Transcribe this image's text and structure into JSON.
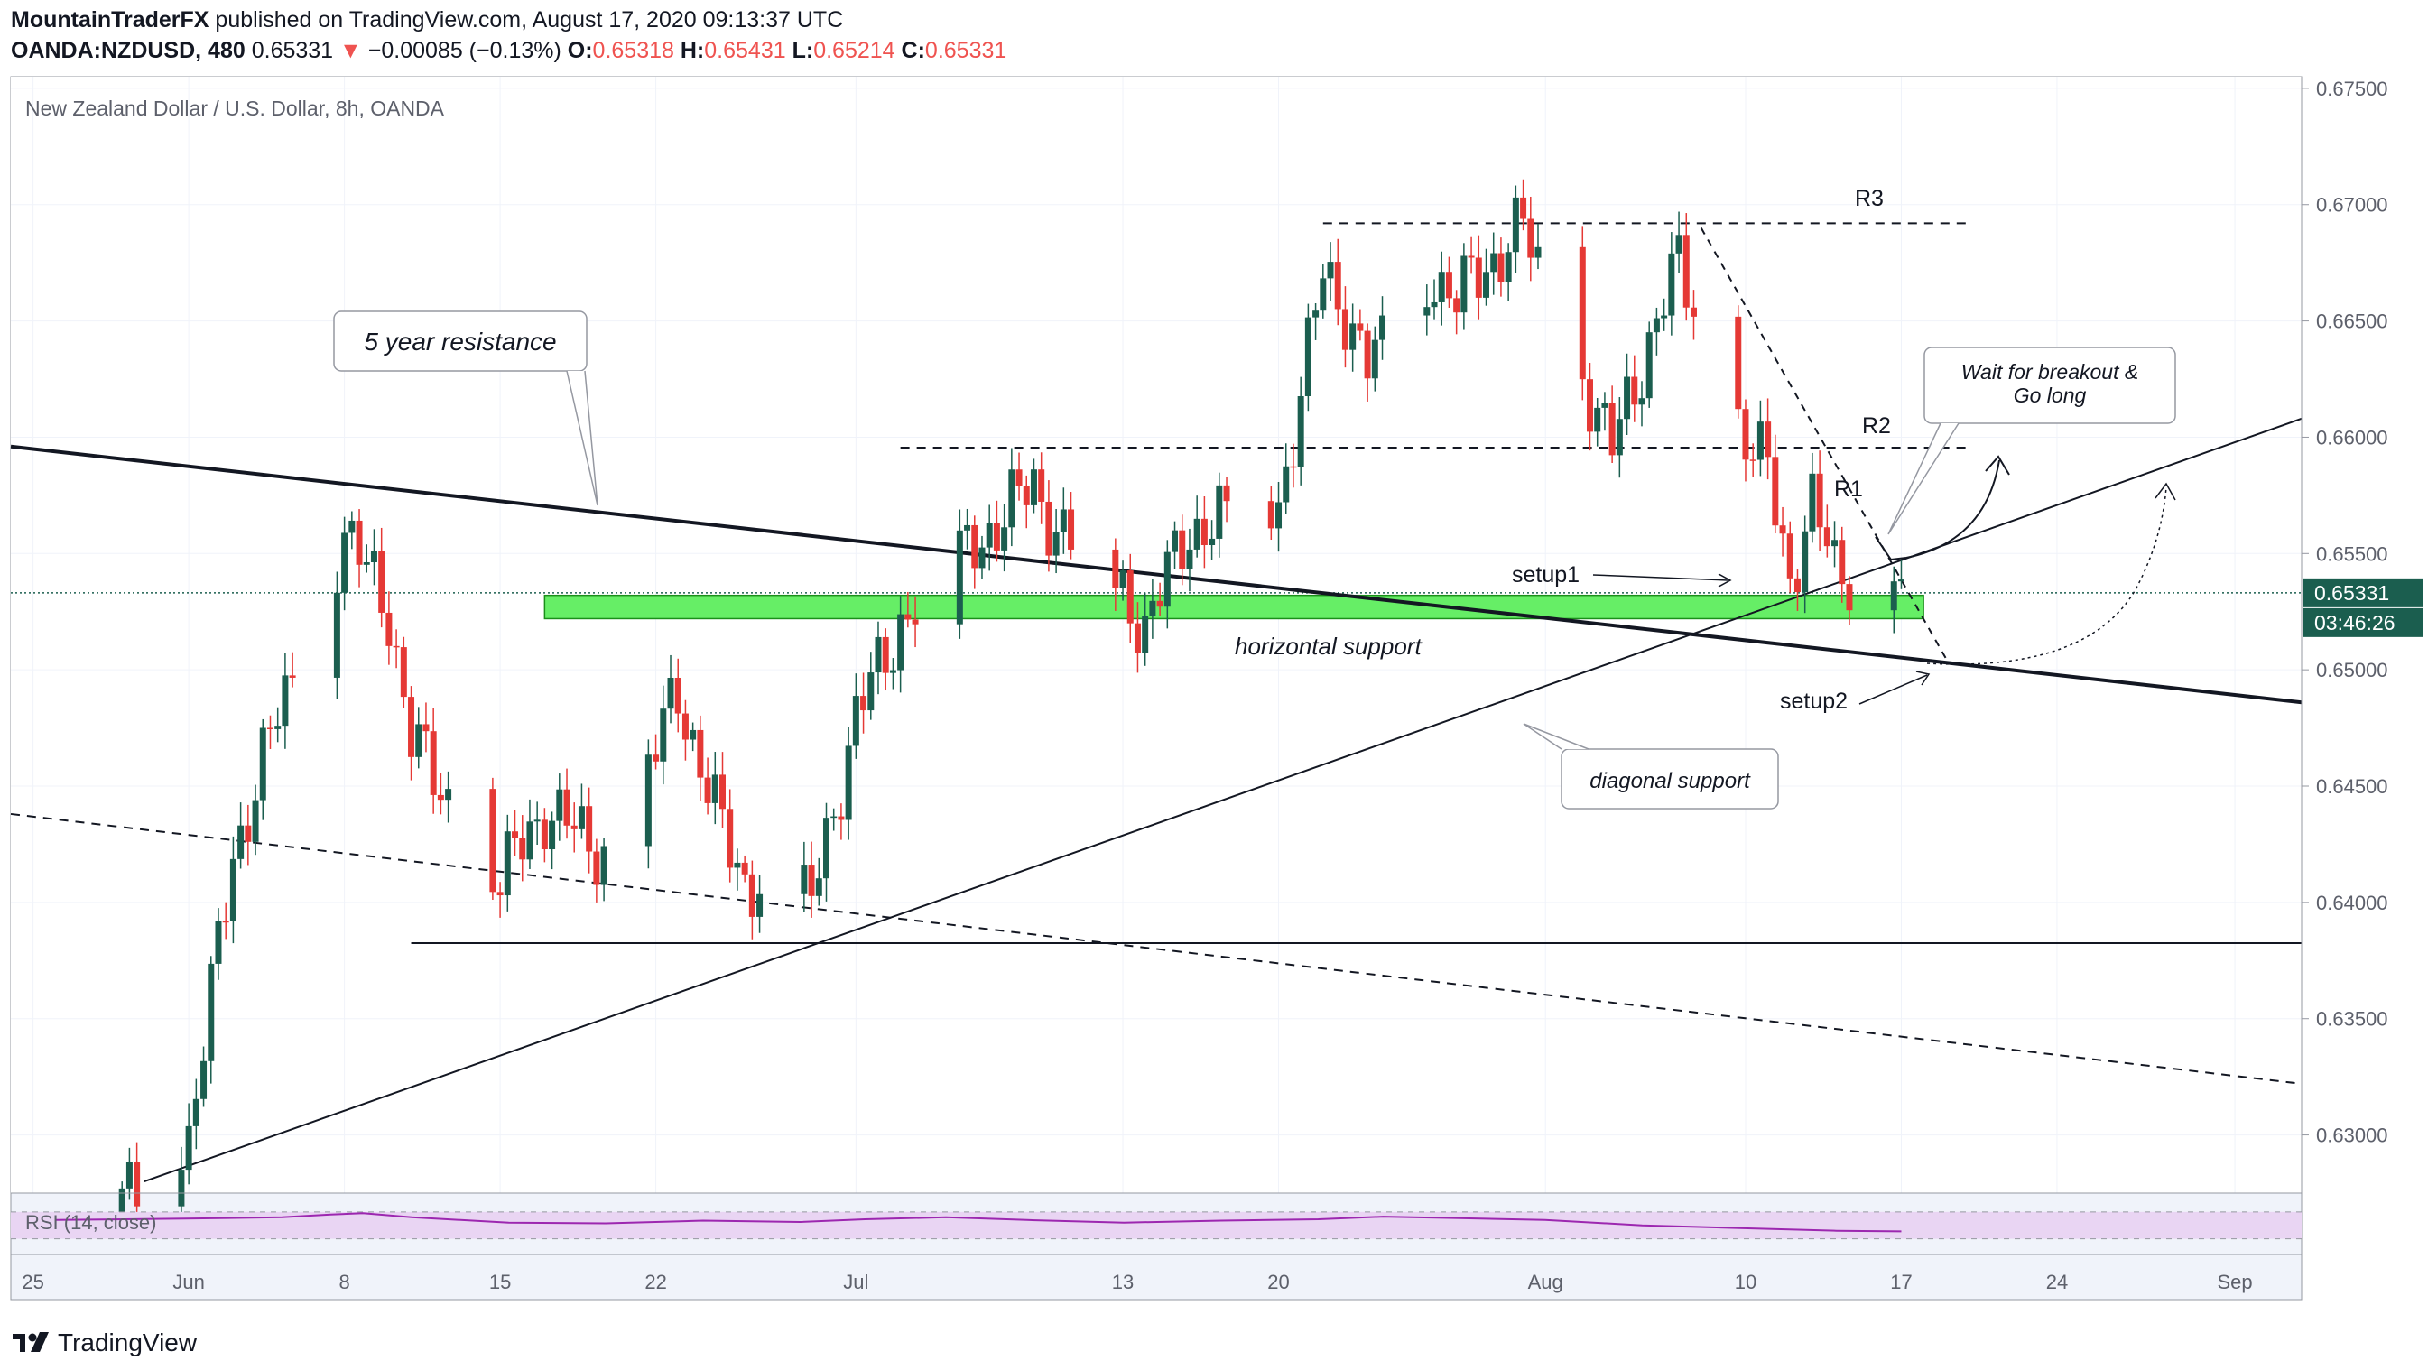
{
  "header": {
    "author": "MountainTraderFX",
    "published": "published on TradingView.com, August 17, 2020 09:13:37 UTC",
    "symbol": "OANDA:NZDUSD, 480",
    "last": "0.65331",
    "change_arrow": "▼",
    "change": "−0.00085 (−0.13%)",
    "o_label": "O:",
    "o_value": "0.65318",
    "h_label": "H:",
    "h_value": "0.65431",
    "l_label": "L:",
    "l_value": "0.65214",
    "c_label": "C:",
    "c_value": "0.65331"
  },
  "footer": {
    "brand": "TradingView",
    "logo_icon": "tradingview-logo-icon"
  },
  "colors": {
    "up": "#1b5e4f",
    "down": "#e53935",
    "zone": "#66ee66",
    "rsi": "#9c27b0",
    "rsi_band": "#e9d5f3",
    "price_badge": "#1b5e4f"
  },
  "chart_data": {
    "type": "candlestick",
    "title": "New Zealand Dollar / U.S. Dollar, 8h, OANDA",
    "ylim": [
      0.6275,
      0.6755
    ],
    "y_ticks": [
      "0.67500",
      "0.67000",
      "0.66500",
      "0.66000",
      "0.65500",
      "0.65000",
      "0.64500",
      "0.64000",
      "0.63500",
      "0.63000"
    ],
    "x_ticks": [
      "25",
      "Jun",
      "8",
      "15",
      "22",
      "Jul",
      "13",
      "20",
      "Aug",
      "10",
      "17",
      "24",
      "Sep"
    ],
    "grid": true,
    "last_price_label": "0.65331",
    "countdown_label": "03:46:26",
    "close_anchors": [
      {
        "date": "2020-05-29",
        "close": 0.627
      },
      {
        "date": "2020-06-01",
        "close": 0.63
      },
      {
        "date": "2020-06-03",
        "close": 0.642
      },
      {
        "date": "2020-06-05",
        "close": 0.648
      },
      {
        "date": "2020-06-08",
        "close": 0.656
      },
      {
        "date": "2020-06-10",
        "close": 0.6525
      },
      {
        "date": "2020-06-11",
        "close": 0.647
      },
      {
        "date": "2020-06-15",
        "close": 0.641
      },
      {
        "date": "2020-06-17",
        "close": 0.644
      },
      {
        "date": "2020-06-20",
        "close": 0.642
      },
      {
        "date": "2020-06-23",
        "close": 0.649
      },
      {
        "date": "2020-06-25",
        "close": 0.643
      },
      {
        "date": "2020-06-26",
        "close": 0.641
      },
      {
        "date": "2020-06-29",
        "close": 0.64
      },
      {
        "date": "2020-07-01",
        "close": 0.648
      },
      {
        "date": "2020-07-03",
        "close": 0.652
      },
      {
        "date": "2020-07-06",
        "close": 0.655
      },
      {
        "date": "2020-07-09",
        "close": 0.658
      },
      {
        "date": "2020-07-10",
        "close": 0.656
      },
      {
        "date": "2020-07-13",
        "close": 0.653
      },
      {
        "date": "2020-07-14",
        "close": 0.652
      },
      {
        "date": "2020-07-16",
        "close": 0.656
      },
      {
        "date": "2020-07-20",
        "close": 0.657
      },
      {
        "date": "2020-07-22",
        "close": 0.667
      },
      {
        "date": "2020-07-23",
        "close": 0.6655
      },
      {
        "date": "2020-07-24",
        "close": 0.663
      },
      {
        "date": "2020-07-27",
        "close": 0.667
      },
      {
        "date": "2020-07-28",
        "close": 0.666
      },
      {
        "date": "2020-07-30",
        "close": 0.668
      },
      {
        "date": "2020-07-31",
        "close": 0.669
      },
      {
        "date": "2020-08-03",
        "close": 0.662
      },
      {
        "date": "2020-08-04",
        "close": 0.6595
      },
      {
        "date": "2020-08-06",
        "close": 0.665
      },
      {
        "date": "2020-08-07",
        "close": 0.6675
      },
      {
        "date": "2020-08-10",
        "close": 0.66
      },
      {
        "date": "2020-08-11",
        "close": 0.6585
      },
      {
        "date": "2020-08-12",
        "close": 0.654
      },
      {
        "date": "2020-08-13",
        "close": 0.657
      },
      {
        "date": "2020-08-14",
        "close": 0.6545
      },
      {
        "date": "2020-08-17",
        "close": 0.6533
      }
    ],
    "levels": [
      {
        "label": "R3",
        "price": 0.6692
      },
      {
        "label": "R2",
        "price": 0.65955
      },
      {
        "label": "R1",
        "price": 0.6578
      },
      {
        "label": "",
        "price": 0.63825
      }
    ],
    "horizontal_support_zone": {
      "label": "horizontal support",
      "low": 0.6522,
      "high": 0.6532
    },
    "trendlines": [
      {
        "name": "5 year resistance",
        "from": {
          "date": "2020-05-24",
          "price": 0.6596
        },
        "to": {
          "date": "2020-09-04",
          "price": 0.6486
        }
      },
      {
        "name": "diagonal support",
        "from": {
          "date": "2020-05-30",
          "price": 0.628
        },
        "to": {
          "date": "2020-09-04",
          "price": 0.6608
        }
      },
      {
        "name": "dashed channel",
        "from": {
          "date": "2020-05-24",
          "price": 0.6438
        },
        "to": {
          "date": "2020-09-04",
          "price": 0.6322
        }
      }
    ],
    "annotations": {
      "resistance_callout": "5 year resistance",
      "diagonal_callout": "diagonal support",
      "wait_callout": "Wait for breakout &\nGo long",
      "setup1": "setup1",
      "setup2": "setup2",
      "horizontal_support": "horizontal support",
      "r1": "R1",
      "r2": "R2",
      "r3": "R3"
    },
    "rsi": {
      "label": "RSI (14, close)",
      "upper": 70,
      "lower": 30,
      "anchors": [
        [
          0,
          58
        ],
        [
          40,
          60
        ],
        [
          70,
          62
        ],
        [
          85,
          66
        ],
        [
          95,
          68
        ],
        [
          110,
          62
        ],
        [
          140,
          54
        ],
        [
          170,
          53
        ],
        [
          200,
          57
        ],
        [
          230,
          55
        ],
        [
          250,
          59
        ],
        [
          275,
          62
        ],
        [
          300,
          58
        ],
        [
          330,
          54
        ],
        [
          360,
          57
        ],
        [
          390,
          59
        ],
        [
          410,
          63
        ],
        [
          430,
          61
        ],
        [
          460,
          58
        ],
        [
          490,
          50
        ],
        [
          520,
          46
        ],
        [
          550,
          42
        ],
        [
          570,
          41
        ]
      ]
    }
  }
}
